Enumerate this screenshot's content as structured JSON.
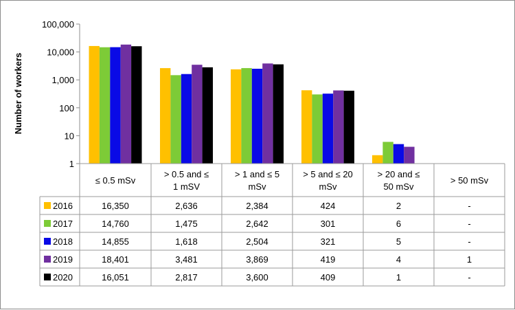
{
  "chart_data": {
    "type": "bar",
    "ylabel": "Number of workers",
    "yscale": "log",
    "ylim": [
      1,
      100000
    ],
    "yticks": [
      "1",
      "10",
      "100",
      "1,000",
      "10,000",
      "100,000"
    ],
    "grid": false,
    "legend": "data-table-left",
    "categories": [
      [
        "≤ 0.5 mSv"
      ],
      [
        "> 0.5 and ≤",
        "1 mSV"
      ],
      [
        "> 1 and ≤ 5",
        "mSv"
      ],
      [
        "> 5 and ≤ 20",
        "mSv"
      ],
      [
        "> 20 and ≤",
        "50 mSv"
      ],
      [
        "> 50 mSv"
      ]
    ],
    "series": [
      {
        "name": "2016",
        "color": "#FFC000",
        "values": [
          16350,
          2636,
          2384,
          424,
          2,
          null
        ],
        "labels": [
          "16,350",
          "2,636",
          "2,384",
          "424",
          "2",
          "-"
        ]
      },
      {
        "name": "2017",
        "color": "#7DCB37",
        "values": [
          14760,
          1475,
          2642,
          301,
          6,
          null
        ],
        "labels": [
          "14,760",
          "1,475",
          "2,642",
          "301",
          "6",
          "-"
        ]
      },
      {
        "name": "2018",
        "color": "#0A0AE6",
        "values": [
          14855,
          1618,
          2504,
          321,
          5,
          null
        ],
        "labels": [
          "14,855",
          "1,618",
          "2,504",
          "321",
          "5",
          "-"
        ]
      },
      {
        "name": "2019",
        "color": "#7030A0",
        "values": [
          18401,
          3481,
          3869,
          419,
          4,
          1
        ],
        "labels": [
          "18,401",
          "3,481",
          "3,869",
          "419",
          "4",
          "1"
        ]
      },
      {
        "name": "2020",
        "color": "#000000",
        "values": [
          16051,
          2817,
          3600,
          409,
          1,
          null
        ],
        "labels": [
          "16,051",
          "2,817",
          "3,600",
          "409",
          "1",
          "-"
        ]
      }
    ]
  }
}
